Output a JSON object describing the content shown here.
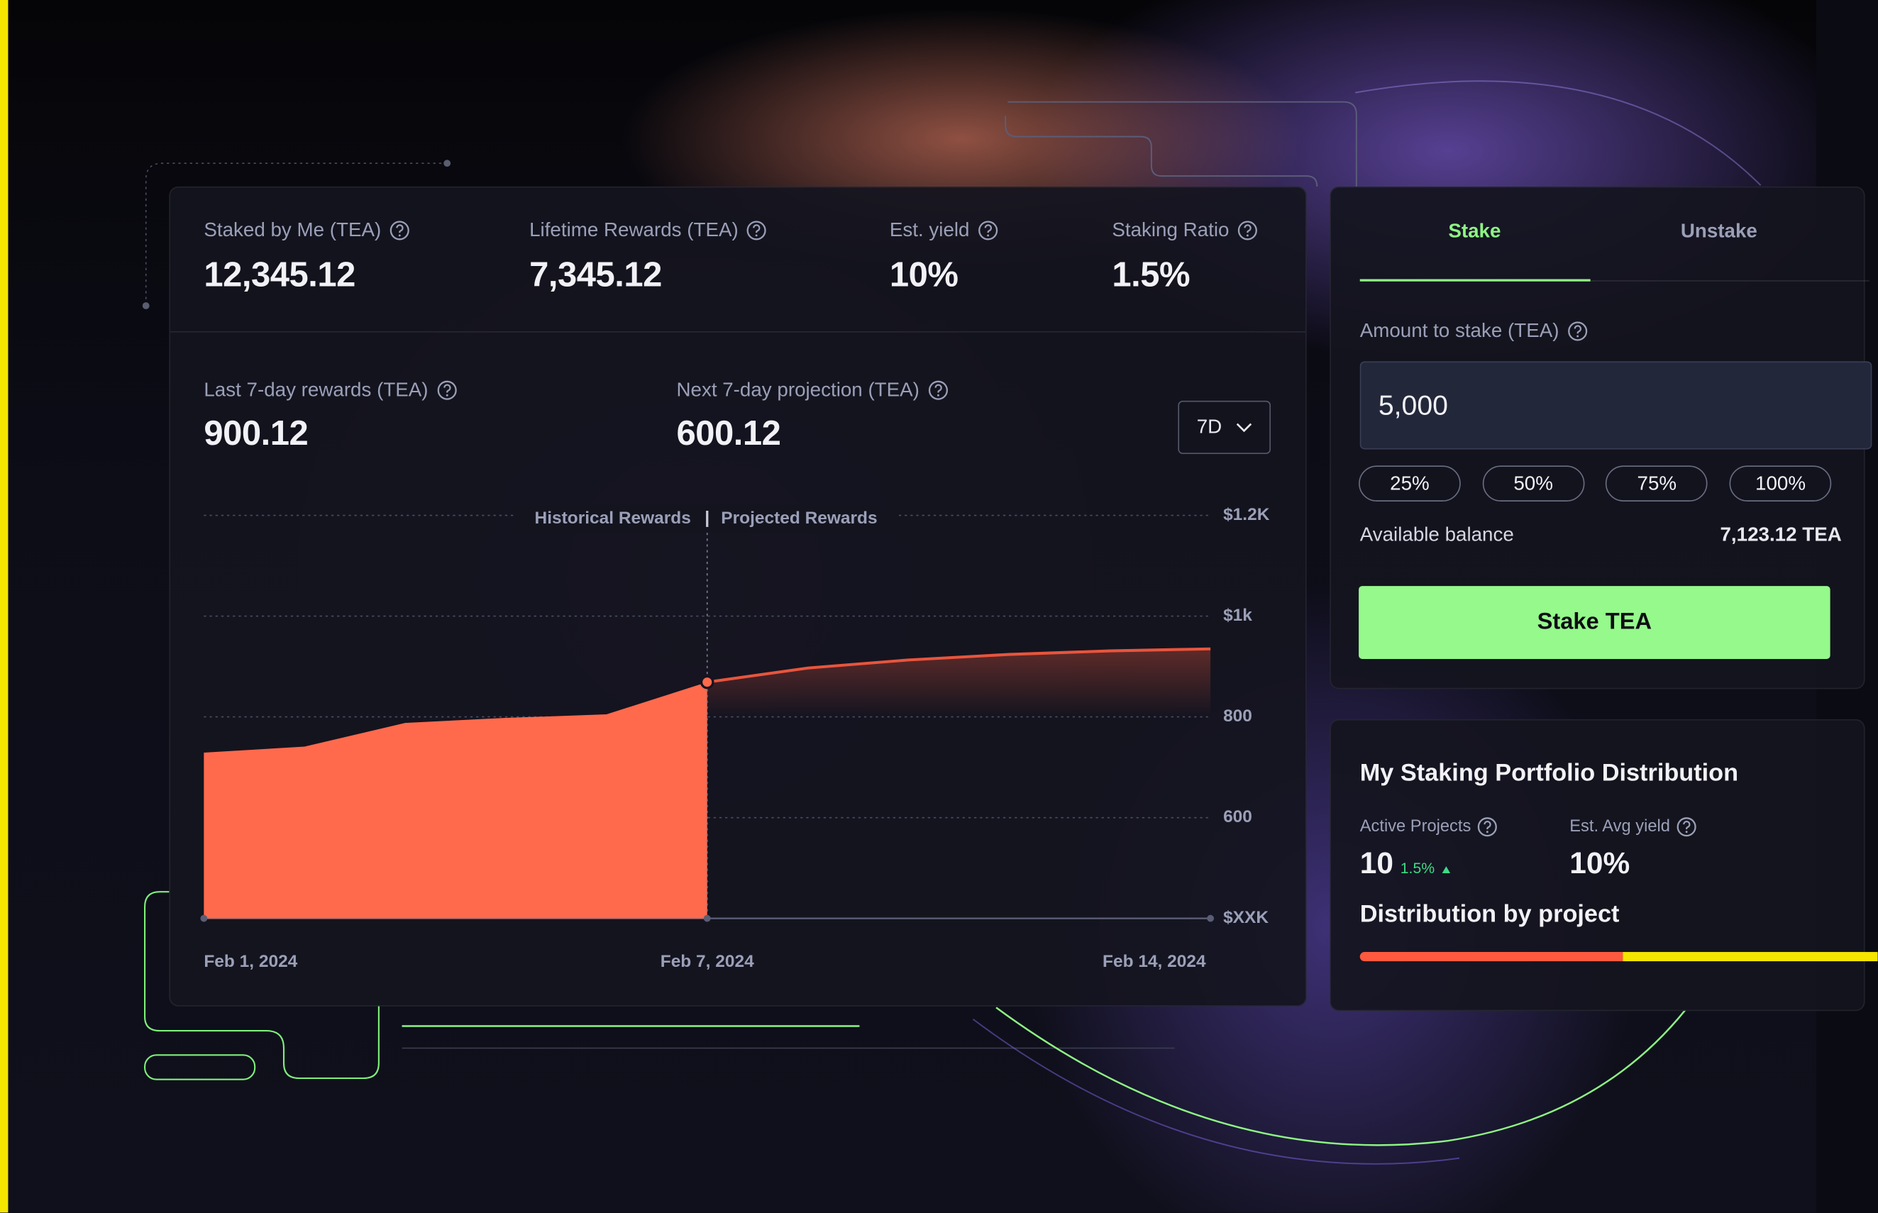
{
  "stats": [
    {
      "label": "Staked by Me (TEA)",
      "value": "12,345.12"
    },
    {
      "label": "Lifetime Rewards (TEA)",
      "value": "7,345.12"
    },
    {
      "label": "Est. yield",
      "value": "10%"
    },
    {
      "label": "Staking Ratio",
      "value": "1.5%"
    }
  ],
  "rewards": [
    {
      "label": "Last 7-day rewards (TEA)",
      "value": "900.12"
    },
    {
      "label": "Next 7-day projection (TEA)",
      "value": "600.12"
    }
  ],
  "period_select": "7D",
  "chart_data": {
    "type": "area",
    "categories": [
      "Feb 1, 2024",
      null,
      null,
      null,
      null,
      "Feb 7, 2024",
      null,
      null,
      null,
      null,
      "Feb 14, 2024"
    ],
    "series": [
      {
        "name": "Historical Rewards",
        "color": "#ff6a4d",
        "fill_style": "solid",
        "values": [
          729,
          741,
          788,
          798,
          805,
          869,
          null,
          null,
          null,
          null,
          null
        ]
      },
      {
        "name": "Projected Rewards",
        "color": "#e8553d",
        "fill_style": "fade",
        "values": [
          null,
          null,
          null,
          null,
          null,
          869,
          897,
          913,
          924,
          931,
          935
        ]
      }
    ],
    "ylim": [
      400,
      1200
    ],
    "yticks": [
      {
        "value": 400,
        "label": "$XXK"
      },
      600,
      800,
      {
        "value": 1000,
        "label": "$1k"
      },
      {
        "value": 1200,
        "label": "$1.2K"
      }
    ],
    "grid": true
  },
  "stake_panel": {
    "tabs": [
      "Stake",
      "Unstake"
    ],
    "amount_label": "Amount to stake (TEA)",
    "amount": "5,000",
    "percent_buttons": [
      "25%",
      "50%",
      "75%",
      "100%"
    ],
    "balance_label": "Available balance",
    "balance": "7,123.12 TEA",
    "button": "Stake TEA"
  },
  "portfolio": {
    "title": "My Staking Portfolio Distribution",
    "active_projects": {
      "label": "Active Projects",
      "value": "10",
      "change": "1.5%"
    },
    "avg_yield": {
      "label": "Est. Avg yield",
      "value": "10%"
    },
    "distribution_title": "Distribution by project"
  }
}
